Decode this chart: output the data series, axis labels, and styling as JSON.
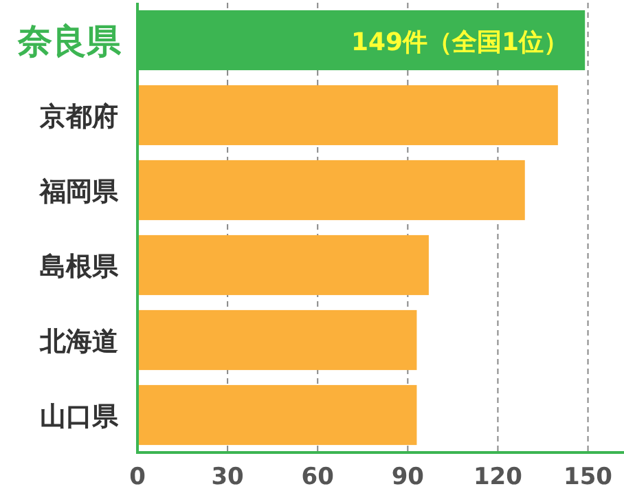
{
  "chart_data": {
    "type": "bar",
    "orientation": "horizontal",
    "categories": [
      "奈良県",
      "京都府",
      "福岡県",
      "島根県",
      "北海道",
      "山口県"
    ],
    "values": [
      149,
      140,
      129,
      97,
      93,
      93
    ],
    "colors": [
      "#3cb552",
      "#fbb03b",
      "#fbb03b",
      "#fbb03b",
      "#fbb03b",
      "#fbb03b"
    ],
    "value_labels": [
      "149件（全国1位）",
      null,
      null,
      null,
      null,
      null
    ],
    "xlim": [
      0,
      162
    ],
    "xticks": [
      0,
      30,
      60,
      90,
      120,
      150
    ],
    "grid": "x"
  }
}
